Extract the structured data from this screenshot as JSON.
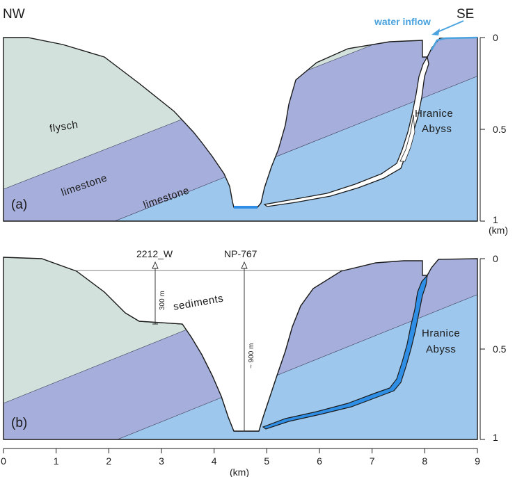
{
  "panel_a": {
    "label": "(a)",
    "dir_left": "NW",
    "dir_right": "SE",
    "water_inflow": "water inflow",
    "layer_flysch": "flysch",
    "layer_limestone_upper": "limestone",
    "layer_limestone_lower": "limestone",
    "abyss_line1": "Hranice",
    "abyss_line2": "Abyss"
  },
  "panel_b": {
    "label": "(b)",
    "borehole_1": "2212_W",
    "borehole_2": "NP-767",
    "borehole_1_depth": "300 m",
    "borehole_2_depth": "~ 900 m",
    "layer_sediments": "sediments",
    "abyss_line1": "Hranice",
    "abyss_line2": "Abyss"
  },
  "depth_axis": {
    "ticks": [
      "0",
      "0.5",
      "1"
    ],
    "unit": "(km)"
  },
  "distance_axis": {
    "ticks": [
      "0",
      "1",
      "2",
      "3",
      "4",
      "5",
      "6",
      "7",
      "8",
      "9"
    ],
    "unit": "(km)",
    "unit_right": "(km)"
  },
  "colors": {
    "flysch": "#d3e1dc",
    "limestone_upper": "#a6aedb",
    "limestone_lower": "#9dc7ec",
    "sediments": "#ebe6a6",
    "water": "#2f8fe6",
    "water_label": "#4aa3df"
  }
}
